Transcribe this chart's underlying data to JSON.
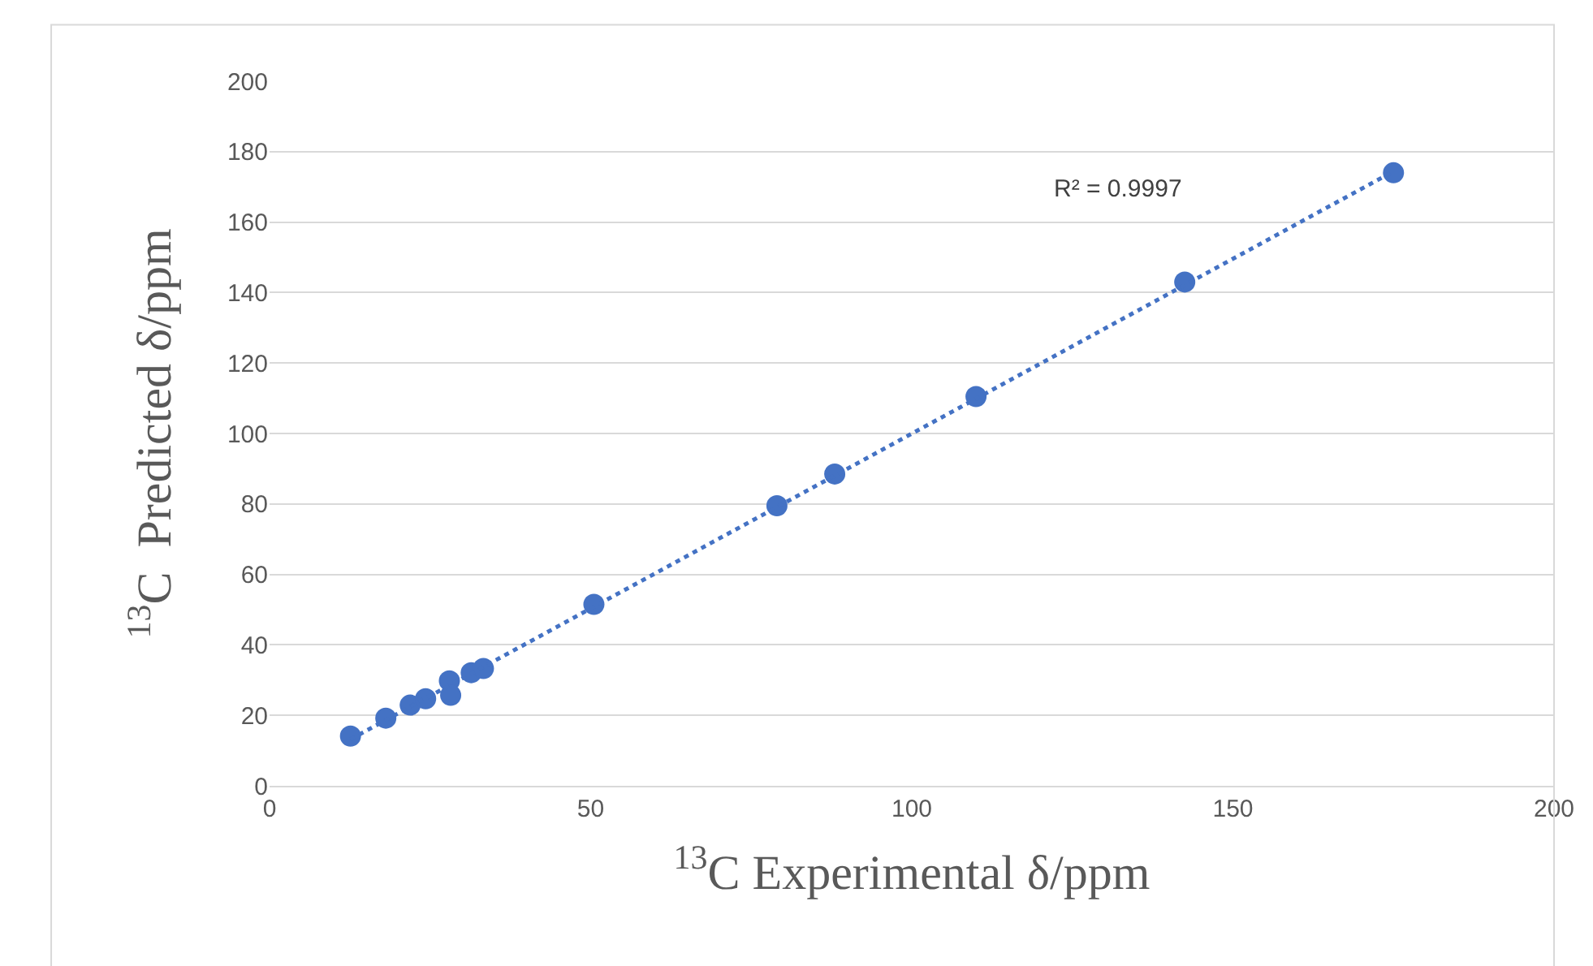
{
  "chart_data": {
    "type": "scatter",
    "xlabel": "$^{13}$C Experimental δ/ppm",
    "ylabel": "$^{13}$C  Predicted δ/ppm",
    "xlim": [
      0,
      200
    ],
    "xticks": [
      0,
      50,
      100,
      150,
      200
    ],
    "ylim": [
      0,
      200
    ],
    "yticks": [
      0,
      20,
      40,
      60,
      80,
      100,
      120,
      140,
      160,
      180,
      200
    ],
    "grid": "y",
    "annotations": [
      "R² = 0.9997"
    ],
    "series": [
      {
        "color": "#4472c4",
        "marker": "circle",
        "x": [
          12.6,
          18.1,
          21.9,
          24.3,
          28.0,
          28.2,
          31.4,
          33.3,
          50.5,
          79,
          88,
          110,
          142.5,
          175
        ],
        "values": [
          14.1,
          19.2,
          22.9,
          24.7,
          29.8,
          25.7,
          32.1,
          33.3,
          51.5,
          79.5,
          88.5,
          110.5,
          143,
          174
        ]
      },
      {
        "type": "line",
        "line_style": "dotted",
        "color": "#4472c4",
        "x": [
          12.6,
          175
        ],
        "values": [
          13.2,
          174.4
        ]
      }
    ]
  }
}
